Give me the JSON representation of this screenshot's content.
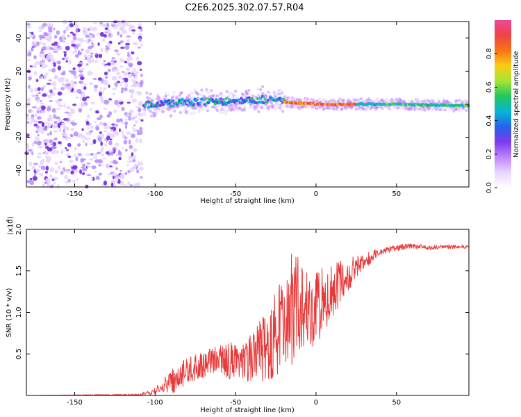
{
  "figure_title": "C2E6.2025.302.07.57.R04",
  "colors": {
    "snr_line": "#e83a3a",
    "frame": "#000000",
    "noise_light": "#e6d4ff",
    "noise_mid": "#b48cff",
    "noise_dark": "#6a1de0"
  },
  "colorbar_gradient": [
    "#ffffff",
    "#e9d5ff",
    "#c084fc",
    "#7c3aed",
    "#2563eb",
    "#06b6d4",
    "#22c55e",
    "#a3e635",
    "#facc15",
    "#f97316",
    "#ef4444",
    "#ec4899"
  ],
  "chart_data": [
    {
      "type": "heatmap",
      "title": "C2E6.2025.302.07.57.R04",
      "xlabel": "Height of straight line (km)",
      "ylabel": "Frequency (Hz)",
      "xlim": [
        -180,
        95
      ],
      "ylim": [
        -50,
        50
      ],
      "x_ticks": [
        -150,
        -100,
        -50,
        0,
        50
      ],
      "y_ticks": [
        -40,
        -20,
        0,
        20,
        40
      ],
      "colorbar": {
        "label": "Normalized spectral amplitude",
        "range": [
          0,
          1.0
        ],
        "ticks": [
          0.0,
          0.2,
          0.4,
          0.6,
          0.8
        ]
      },
      "features": {
        "noise_region_x": [
          -180,
          -108
        ],
        "signal_center_freq_hz": [
          {
            "x": -105,
            "f": 0
          },
          {
            "x": -80,
            "f": 1
          },
          {
            "x": -50,
            "f": 2
          },
          {
            "x": -30,
            "f": 3
          },
          {
            "x": -15,
            "f": 1
          },
          {
            "x": 0,
            "f": 0
          },
          {
            "x": 50,
            "f": 0
          },
          {
            "x": 95,
            "f": -1
          }
        ],
        "peak_amplitude_region_x": [
          -20,
          25
        ]
      }
    },
    {
      "type": "line",
      "xlabel": "Height of straight line (km)",
      "ylabel": "SNR (10 * v/v)",
      "y_scale_label": "(x10",
      "y_scale_exponent": "4",
      "xlim": [
        -180,
        95
      ],
      "ylim": [
        0,
        2.0
      ],
      "x_ticks": [
        -150,
        -100,
        -50,
        0,
        50
      ],
      "y_ticks": [
        0.5,
        1.0,
        1.5,
        2.0
      ],
      "series": [
        {
          "name": "SNR",
          "envelope_x": [
            -180,
            -110,
            -100,
            -90,
            -80,
            -70,
            -60,
            -50,
            -40,
            -30,
            -25,
            -20,
            -15,
            -10,
            -5,
            0,
            5,
            10,
            20,
            30,
            40,
            50,
            60,
            70,
            80,
            95
          ],
          "envelope_y": [
            0.0,
            0.01,
            0.05,
            0.16,
            0.3,
            0.38,
            0.42,
            0.42,
            0.45,
            0.6,
            0.75,
            0.95,
            1.05,
            1.1,
            1.1,
            1.05,
            1.15,
            1.25,
            1.45,
            1.62,
            1.73,
            1.78,
            1.8,
            1.78,
            1.79,
            1.79
          ],
          "noise_amp_x": [
            -180,
            -110,
            -100,
            -90,
            -60,
            -40,
            -30,
            -20,
            -15,
            -10,
            0,
            10,
            20,
            30,
            40,
            95
          ],
          "noise_amp_y": [
            0.0,
            0.01,
            0.05,
            0.15,
            0.18,
            0.3,
            0.45,
            0.6,
            0.7,
            0.55,
            0.5,
            0.35,
            0.2,
            0.1,
            0.04,
            0.02
          ]
        }
      ]
    }
  ]
}
